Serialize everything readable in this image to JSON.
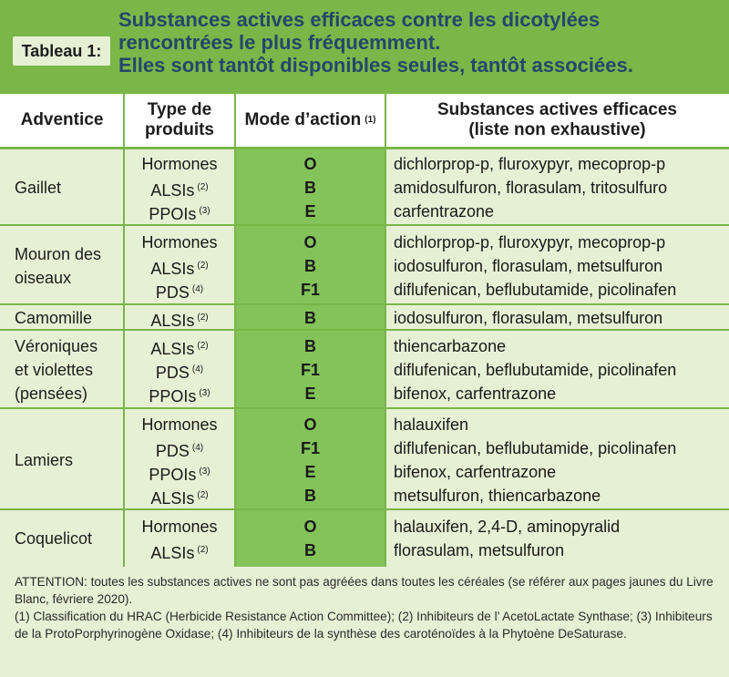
{
  "header": {
    "tag": "Tableau 1:",
    "title_lines": [
      "Substances actives efficaces contre les dicotylées",
      "rencontrées le plus fréquemment.",
      "Elles sont tantôt disponibles seules, tantôt associées."
    ]
  },
  "columns": {
    "weed": "Adventice",
    "type_line1": "Type de",
    "type_line2": "produits",
    "mode": "Mode d’action",
    "mode_note": "(1)",
    "subs_line1": "Substances actives efficaces",
    "subs_line2": "(liste non exhaustive)"
  },
  "rows": [
    {
      "weed_lines": [
        "Gaillet"
      ],
      "entries": [
        {
          "type": "Hormones",
          "note": "",
          "mode": "O",
          "subs": "dichlorprop-p, fluroxypyr, mecoprop-p"
        },
        {
          "type": "ALSIs",
          "note": "(2)",
          "mode": "B",
          "subs": "amidosulfuron, florasulam, tritosulfuro"
        },
        {
          "type": "PPOIs",
          "note": "(3)",
          "mode": "E",
          "subs": "carfentrazone"
        }
      ]
    },
    {
      "weed_lines": [
        "Mouron des",
        "oiseaux"
      ],
      "entries": [
        {
          "type": "Hormones",
          "note": "",
          "mode": "O",
          "subs": "dichlorprop-p, fluroxypyr, mecoprop-p"
        },
        {
          "type": "ALSIs",
          "note": "(2)",
          "mode": "B",
          "subs": "iodosulfuron, florasulam, metsulfuron"
        },
        {
          "type": "PDS",
          "note": "(4)",
          "mode": "F1",
          "subs": "diflufenican, beflubutamide, picolinafen"
        }
      ]
    },
    {
      "weed_lines": [
        "Camomille"
      ],
      "entries": [
        {
          "type": "ALSIs",
          "note": "(2)",
          "mode": "B",
          "subs": "iodosulfuron, florasulam, metsulfuron"
        }
      ]
    },
    {
      "weed_lines": [
        "Véroniques",
        "et violettes",
        "(pensées)"
      ],
      "entries": [
        {
          "type": "ALSIs",
          "note": "(2)",
          "mode": "B",
          "subs": "thiencarbazone"
        },
        {
          "type": "PDS",
          "note": "(4)",
          "mode": "F1",
          "subs": "diflufenican, beflubutamide, picolinafen"
        },
        {
          "type": "PPOIs",
          "note": "(3)",
          "mode": "E",
          "subs": "bifenox, carfentrazone"
        }
      ]
    },
    {
      "weed_lines": [
        "Lamiers"
      ],
      "entries": [
        {
          "type": "Hormones",
          "note": "",
          "mode": "O",
          "subs": "halauxifen"
        },
        {
          "type": "PDS",
          "note": "(4)",
          "mode": "F1",
          "subs": "diflufenican, beflubutamide, picolinafen"
        },
        {
          "type": "PPOIs",
          "note": "(3)",
          "mode": "E",
          "subs": "bifenox, carfentrazone"
        },
        {
          "type": "ALSIs",
          "note": "(2)",
          "mode": "B",
          "subs": "metsulfuron, thiencarbazone"
        }
      ]
    },
    {
      "weed_lines": [
        "Coquelicot"
      ],
      "entries": [
        {
          "type": "Hormones",
          "note": "",
          "mode": "O",
          "subs": "halauxifen, 2,4-D, aminopyralid"
        },
        {
          "type": "ALSIs",
          "note": "(2)",
          "mode": "B",
          "subs": "florasulam, metsulfuron"
        }
      ]
    }
  ],
  "footer": {
    "line1": "ATTENTION: toutes les substances actives ne sont pas agréées dans toutes les céréales (se référer aux pages jaunes du Livre Blanc, févriere 2020).",
    "line2": "(1) Classification du HRAC (Herbicide Resistance Action Committee); (2) Inhibiteurs de l’ AcetoLactate Synthase; (3) Inhibiteurs de la ProtoPorphyrinogène Oxidase; (4) Inhibiteurs de la synthèse des caroténoïdes à la Phytoène DeSaturase."
  },
  "colors": {
    "green_band": "#7ab648",
    "green_column": "#83c35a",
    "background": "#e6f0d5",
    "title": "#24476b"
  }
}
